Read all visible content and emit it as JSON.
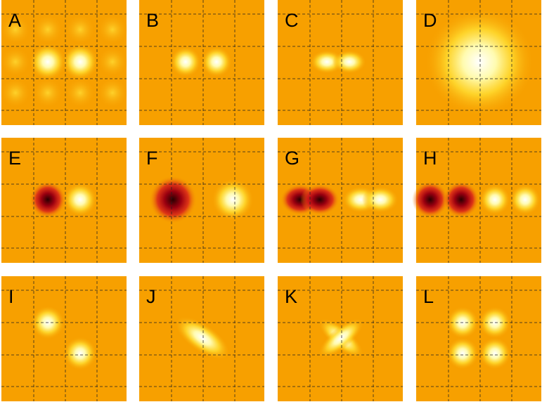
{
  "panels": [
    {
      "label": "A"
    },
    {
      "label": "B"
    },
    {
      "label": "C"
    },
    {
      "label": "D"
    },
    {
      "label": "E"
    },
    {
      "label": "F"
    },
    {
      "label": "G"
    },
    {
      "label": "H"
    },
    {
      "label": "I"
    },
    {
      "label": "J"
    },
    {
      "label": "K"
    },
    {
      "label": "L"
    }
  ]
}
